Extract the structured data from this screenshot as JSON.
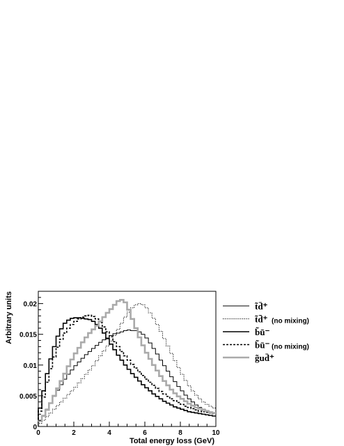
{
  "chart_data": {
    "type": "line",
    "title": "",
    "xlabel": "Total energy loss (GeV)",
    "ylabel": "Arbitrary units",
    "xlim": [
      0,
      10
    ],
    "ylim": [
      0,
      0.022
    ],
    "xticks": [
      0,
      2,
      4,
      6,
      8,
      10
    ],
    "xtick_labels": [
      "0",
      "2",
      "4",
      "6",
      "8",
      "10"
    ],
    "yticks": [
      0,
      0.005,
      0.01,
      0.015,
      0.02
    ],
    "ytick_labels": [
      "0",
      "0.005",
      "0.01",
      "0.015",
      "0.02"
    ],
    "grid": false,
    "legend_position": "right",
    "x": [
      0.1,
      0.3,
      0.5,
      0.7,
      0.9,
      1.1,
      1.3,
      1.5,
      1.7,
      1.9,
      2.1,
      2.3,
      2.5,
      2.7,
      2.9,
      3.1,
      3.3,
      3.5,
      3.7,
      3.9,
      4.1,
      4.3,
      4.5,
      4.7,
      4.9,
      5.1,
      5.3,
      5.5,
      5.7,
      5.9,
      6.1,
      6.3,
      6.5,
      6.7,
      6.9,
      7.1,
      7.3,
      7.5,
      7.7,
      7.9,
      8.1,
      8.3,
      8.5,
      8.7,
      8.9,
      9.1,
      9.3,
      9.5,
      9.7,
      9.9
    ],
    "series": [
      {
        "name": "t̃d̄⁺",
        "note": "",
        "color": "#000000",
        "style": "thin-solid",
        "values": [
          0.0009,
          0.0018,
          0.0028,
          0.0038,
          0.0049,
          0.0059,
          0.0068,
          0.0077,
          0.0085,
          0.0092,
          0.0099,
          0.0105,
          0.0111,
          0.0117,
          0.0122,
          0.0127,
          0.0132,
          0.0137,
          0.0141,
          0.0144,
          0.0148,
          0.0151,
          0.0152,
          0.0154,
          0.0156,
          0.0157,
          0.0156,
          0.0156,
          0.0154,
          0.015,
          0.0144,
          0.0136,
          0.0127,
          0.0118,
          0.0108,
          0.0099,
          0.009,
          0.0081,
          0.0073,
          0.0065,
          0.0058,
          0.0051,
          0.0045,
          0.004,
          0.0035,
          0.0031,
          0.0028,
          0.0026,
          0.0024,
          0.0022
        ]
      },
      {
        "name": "t̃d̄⁺",
        "note": "(no mixing)",
        "color": "#000000",
        "style": "dotted",
        "values": [
          0.0005,
          0.001,
          0.0016,
          0.0022,
          0.0028,
          0.0034,
          0.004,
          0.0046,
          0.0052,
          0.0058,
          0.0064,
          0.0071,
          0.0078,
          0.0085,
          0.0092,
          0.0099,
          0.0107,
          0.0115,
          0.0123,
          0.0131,
          0.0139,
          0.0148,
          0.0158,
          0.0168,
          0.0178,
          0.0186,
          0.0193,
          0.0198,
          0.02,
          0.0198,
          0.0193,
          0.0185,
          0.0176,
          0.0166,
          0.0155,
          0.0143,
          0.0131,
          0.0119,
          0.0107,
          0.0096,
          0.0085,
          0.0075,
          0.0066,
          0.0058,
          0.0051,
          0.0045,
          0.004,
          0.0036,
          0.0033,
          0.003
        ]
      },
      {
        "name": "b̃ū⁻",
        "note": "",
        "color": "#000000",
        "style": "solid",
        "values": [
          0.003,
          0.0058,
          0.0086,
          0.011,
          0.013,
          0.0147,
          0.0159,
          0.0168,
          0.0173,
          0.0176,
          0.0177,
          0.0177,
          0.0176,
          0.0175,
          0.0174,
          0.0171,
          0.0166,
          0.016,
          0.0152,
          0.0143,
          0.0134,
          0.0125,
          0.0116,
          0.0108,
          0.01,
          0.0093,
          0.0086,
          0.008,
          0.0074,
          0.0068,
          0.0063,
          0.0058,
          0.0053,
          0.0049,
          0.0045,
          0.0041,
          0.0038,
          0.0035,
          0.0032,
          0.003,
          0.0028,
          0.0026,
          0.0024,
          0.0023,
          0.0022,
          0.0021,
          0.002,
          0.0019,
          0.0018,
          0.0017
        ]
      },
      {
        "name": "b̃ū⁻",
        "note": "(no mixing)",
        "color": "#000000",
        "style": "dashed",
        "values": [
          0.0025,
          0.0048,
          0.0072,
          0.0094,
          0.0113,
          0.0129,
          0.0142,
          0.0152,
          0.016,
          0.0166,
          0.0171,
          0.0175,
          0.0178,
          0.018,
          0.0181,
          0.0179,
          0.0175,
          0.0169,
          0.0162,
          0.0154,
          0.0146,
          0.0138,
          0.013,
          0.0122,
          0.0115,
          0.0108,
          0.0101,
          0.0095,
          0.0089,
          0.0083,
          0.0077,
          0.0072,
          0.0067,
          0.0062,
          0.0057,
          0.0053,
          0.0049,
          0.0045,
          0.0042,
          0.0039,
          0.0036,
          0.0033,
          0.0031,
          0.0029,
          0.0027,
          0.0025,
          0.0024,
          0.0023,
          0.0022,
          0.0021
        ]
      },
      {
        "name": "g̃ud̄⁺",
        "note": "",
        "color": "#aaaaaa",
        "style": "thick-solid",
        "values": [
          0.0009,
          0.0017,
          0.0027,
          0.0038,
          0.005,
          0.0062,
          0.0074,
          0.0086,
          0.0098,
          0.0109,
          0.0119,
          0.0128,
          0.0137,
          0.0145,
          0.0152,
          0.0158,
          0.0164,
          0.0171,
          0.0178,
          0.0185,
          0.0191,
          0.0198,
          0.0204,
          0.0206,
          0.0202,
          0.019,
          0.0175,
          0.016,
          0.0145,
          0.0132,
          0.012,
          0.011,
          0.01,
          0.0091,
          0.0082,
          0.0074,
          0.0067,
          0.006,
          0.0054,
          0.0049,
          0.0045,
          0.0041,
          0.0037,
          0.0034,
          0.0031,
          0.0029,
          0.0027,
          0.0025,
          0.0023,
          0.0022
        ]
      }
    ]
  }
}
